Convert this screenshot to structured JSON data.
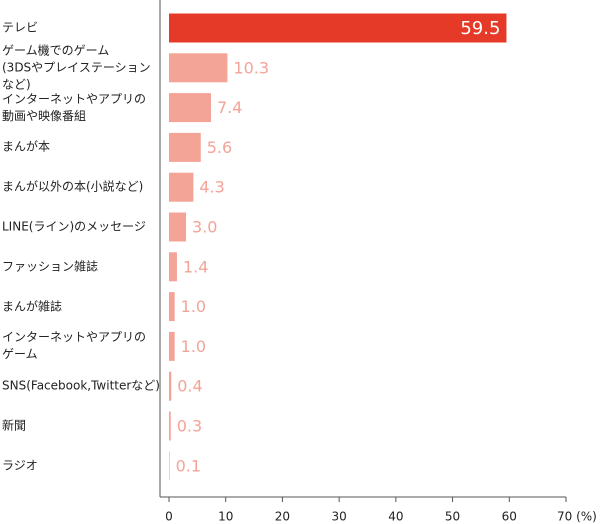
{
  "chart_data": {
    "type": "hbar",
    "categories": [
      "テレビ",
      "ゲーム機でのゲーム\n(3DSやプレイステーションなど)",
      "インターネットやアプリの\n動画や映像番組",
      "まんが本",
      "まんが以外の本(小説など)",
      "LINE(ライン)のメッセージ",
      "ファッション雑誌",
      "まんが雑誌",
      "インターネットやアプリの\nゲーム",
      "SNS(Facebook,Twitterなど)",
      "新聞",
      "ラジオ"
    ],
    "values": [
      59.5,
      10.3,
      7.4,
      5.6,
      4.3,
      3.0,
      1.4,
      1.0,
      1.0,
      0.4,
      0.3,
      0.1
    ],
    "value_labels": [
      "59.5",
      "10.3",
      "7.4",
      "5.6",
      "4.3",
      "3.0",
      "1.4",
      "1.0",
      "1.0",
      "0.4",
      "0.3",
      "0.1"
    ],
    "colors": [
      "#e63a28",
      "#f4a397",
      "#f4a397",
      "#f4a397",
      "#f4a397",
      "#f4a397",
      "#f4a397",
      "#f4a397",
      "#f4a397",
      "#f4a397",
      "#f4a397",
      "#f4a397"
    ],
    "xlim": [
      0,
      70
    ],
    "xticks": [
      0,
      10,
      20,
      30,
      40,
      50,
      60,
      {
        "value": 70,
        "label": "70 (%)"
      }
    ]
  }
}
